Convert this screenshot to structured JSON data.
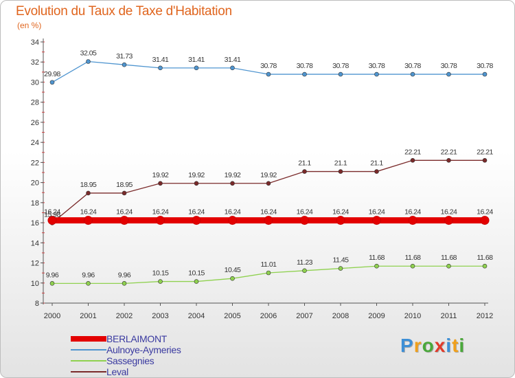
{
  "title": "Evolution du Taux de Taxe d'Habitation",
  "subtitle": "(en %)",
  "logo": {
    "letters": [
      {
        "ch": "P",
        "color": "#3d8fd6"
      },
      {
        "ch": "r",
        "color": "#f0a01c"
      },
      {
        "ch": "o",
        "color": "#4aa83a"
      },
      {
        "ch": "x",
        "color": "#e23a2a"
      },
      {
        "ch": "i",
        "color": "#3d8fd6"
      },
      {
        "ch": "t",
        "color": "#f0a01c"
      },
      {
        "ch": "i",
        "color": "#4aa83a"
      }
    ]
  },
  "chart_data": {
    "type": "line",
    "x": [
      "2000",
      "2001",
      "2002",
      "2003",
      "2004",
      "2005",
      "2006",
      "2007",
      "2008",
      "2009",
      "2010",
      "2011",
      "2012"
    ],
    "ylim": [
      8,
      34
    ],
    "yticks": [
      8,
      10,
      12,
      14,
      16,
      18,
      20,
      22,
      24,
      26,
      28,
      30,
      32,
      34
    ],
    "grid": false,
    "legend_position": "bottom-left",
    "series": [
      {
        "name": "BERLAIMONT",
        "color": "#e30000",
        "values": [
          16.24,
          16.24,
          16.24,
          16.24,
          16.24,
          16.24,
          16.24,
          16.24,
          16.24,
          16.24,
          16.24,
          16.24,
          16.24
        ],
        "labels": [
          "16.24",
          "16.24",
          "16.24",
          "16.24",
          "16.24",
          "16.24",
          "16.24",
          "16.24",
          "16.24",
          "16.24",
          "16.24",
          "16.24",
          "16.24"
        ],
        "thick": true
      },
      {
        "name": "Aulnoye-Aymeries",
        "color": "#4f95d0",
        "values": [
          29.98,
          32.05,
          31.73,
          31.41,
          31.41,
          31.41,
          30.78,
          30.78,
          30.78,
          30.78,
          30.78,
          30.78,
          30.78
        ],
        "labels": [
          "29.98",
          "32.05",
          "31.73",
          "31.41",
          "31.41",
          "31.41",
          "30.78",
          "30.78",
          "30.78",
          "30.78",
          "30.78",
          "30.78",
          "30.78"
        ],
        "thick": false
      },
      {
        "name": "Sassegnies",
        "color": "#8fd14f",
        "values": [
          9.96,
          9.96,
          9.96,
          10.15,
          10.15,
          10.45,
          11.01,
          11.23,
          11.45,
          11.68,
          11.68,
          11.68,
          11.68
        ],
        "labels": [
          "9.96",
          "9.96",
          "9.96",
          "10.15",
          "10.15",
          "10.45",
          "11.01",
          "11.23",
          "11.45",
          "11.68",
          "11.68",
          "11.68",
          "11.68"
        ],
        "thick": false
      },
      {
        "name": "Leval",
        "color": "#7a2a2a",
        "values": [
          15.98,
          18.95,
          18.95,
          19.92,
          19.92,
          19.92,
          19.92,
          21.1,
          21.1,
          21.1,
          22.21,
          22.21,
          22.21
        ],
        "labels": [
          "15.98",
          "18.95",
          "18.95",
          "19.92",
          "19.92",
          "19.92",
          "19.92",
          "21.1",
          "21.1",
          "21.1",
          "22.21",
          "22.21",
          "22.21"
        ],
        "thick": false
      }
    ]
  }
}
